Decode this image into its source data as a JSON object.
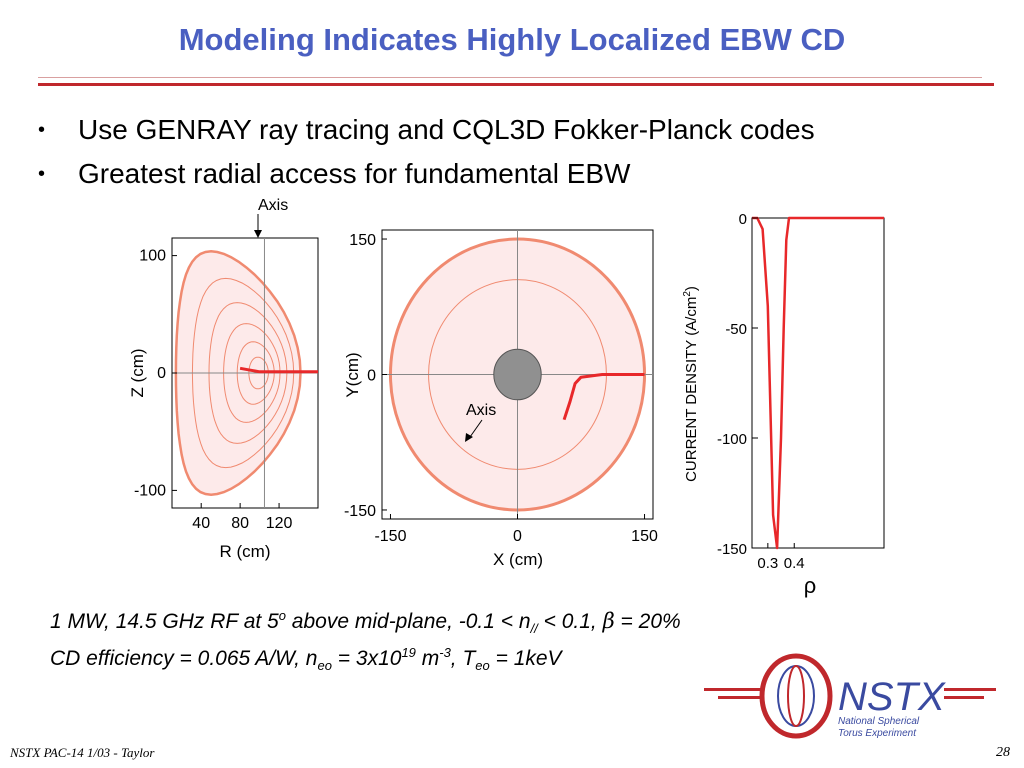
{
  "slide": {
    "title": "Modeling Indicates Highly Localized EBW CD",
    "bullets": [
      "Use GENRAY ray tracing and CQL3D Fokker-Planck codes",
      "Greatest radial access for fundamental EBW"
    ],
    "caption1": {
      "part1": "1 MW, 14.5 GHz RF at 5",
      "sup1": "o",
      "part2": " above mid-plane, -0.1 < n",
      "sub1": "//",
      "part3": " < 0.1, ",
      "beta": "β",
      "part4": " = 20%"
    },
    "caption2": {
      "part1": "CD efficiency = 0.065 A/W, n",
      "sub1": "eo",
      "part2": " = 3x10",
      "sup1": "19",
      "part3": " m",
      "sup2": "-3",
      "part4": ", T",
      "sub2": "eo",
      "part5": " = 1keV"
    },
    "footer_left": "NSTX PAC-14 1/03 - Taylor",
    "page_number": "28"
  },
  "logo": {
    "name": "NSTX",
    "line1": "National Spherical",
    "line2": "Torus Experiment",
    "color": "#c0282c",
    "accent": "#3a4aa0"
  },
  "chart_data": [
    {
      "type": "line",
      "panel": "poloidal",
      "annotation": "Axis",
      "xlabel": "R (cm)",
      "ylabel": "Z (cm)",
      "xticks": [
        "40",
        "80",
        "120"
      ],
      "yticks": [
        "100",
        "0",
        "-100"
      ],
      "xlim": [
        10,
        160
      ],
      "ylim": [
        -115,
        115
      ],
      "series": [
        {
          "values": [
            [
              80,
              4
            ],
            [
              100,
              1
            ],
            [
              140,
              1
            ],
            [
              160,
              1
            ]
          ]
        }
      ]
    },
    {
      "type": "line",
      "panel": "toroidal",
      "annotation": "Axis",
      "xlabel": "X (cm)",
      "ylabel": "Y(cm)",
      "xticks": [
        "-150",
        "0",
        "150"
      ],
      "yticks": [
        "150",
        "0",
        "-150"
      ],
      "xlim": [
        -160,
        160
      ],
      "ylim": [
        -160,
        160
      ],
      "series": [
        {
          "values": [
            [
              55,
              -50
            ],
            [
              62,
              -30
            ],
            [
              68,
              -10
            ],
            [
              75,
              -3
            ],
            [
              100,
              0
            ],
            [
              150,
              0
            ]
          ]
        }
      ]
    },
    {
      "type": "line",
      "panel": "current-density",
      "xlabel": "ρ",
      "ylabel": "CURRENT DENSITY (A/cm",
      "ylabel_sup": "2",
      "ylabel_end": ")",
      "xticks": [
        "0.3",
        "0.4"
      ],
      "yticks": [
        "0",
        "-50",
        "-100",
        "-150"
      ],
      "xlim": [
        0.24,
        0.74
      ],
      "ylim": [
        -150,
        0
      ],
      "series": [
        {
          "values": [
            [
              0.24,
              0
            ],
            [
              0.26,
              0
            ],
            [
              0.28,
              -5
            ],
            [
              0.3,
              -40
            ],
            [
              0.32,
              -135
            ],
            [
              0.335,
              -150
            ],
            [
              0.35,
              -100
            ],
            [
              0.36,
              -50
            ],
            [
              0.37,
              -10
            ],
            [
              0.38,
              0
            ],
            [
              0.74,
              0
            ]
          ]
        }
      ]
    }
  ]
}
